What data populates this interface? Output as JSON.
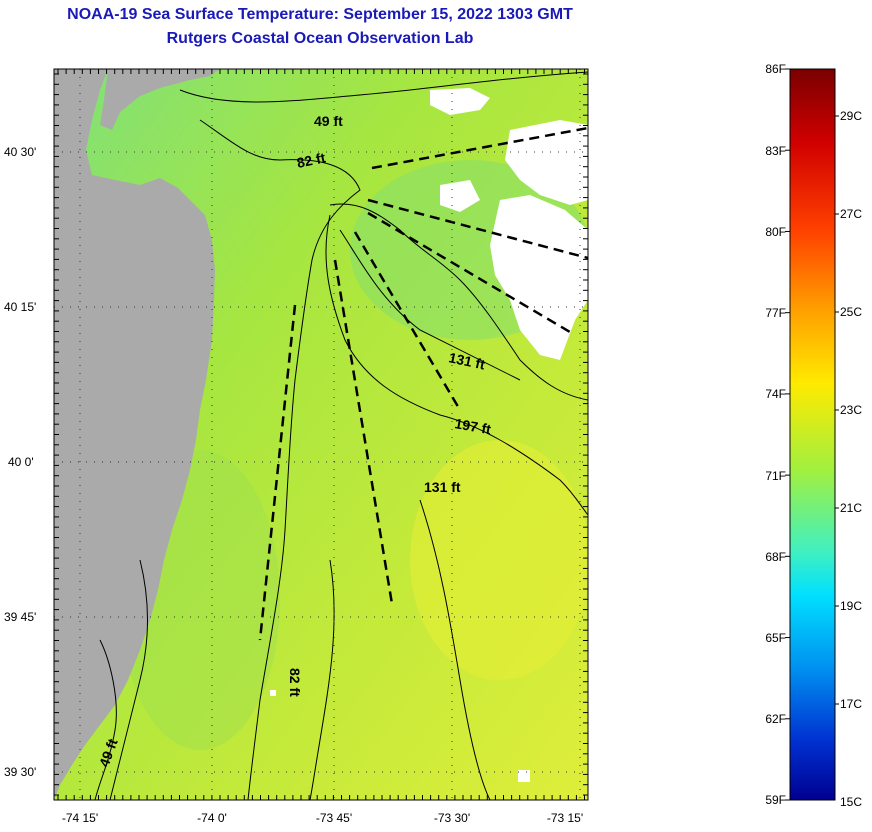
{
  "title": "NOAA-19 Sea Surface Temperature:  September 15, 2022 1303 GMT",
  "subtitle": "Rutgers Coastal Ocean Observation Lab",
  "lat_labels": [
    "40 30'",
    "40 15'",
    "40 0'",
    "39 45'",
    "39 30'"
  ],
  "lon_labels": [
    "-74 15'",
    "-74 0'",
    "-73 45'",
    "-73 30'",
    "-73 15'"
  ],
  "depth_labels": [
    "49 ft",
    "82 ft",
    "131 ft",
    "197 ft",
    "131 ft",
    "82 ft",
    "49 ft"
  ],
  "colorbar": {
    "fahrenheit": [
      "86F",
      "83F",
      "80F",
      "77F",
      "74F",
      "71F",
      "68F",
      "65F",
      "62F",
      "59F"
    ],
    "celsius": [
      "29C",
      "27C",
      "25C",
      "23C",
      "21C",
      "19C",
      "17C",
      "15C"
    ]
  },
  "colors": {
    "land": "#aaaaaa",
    "cloud": "#ffffff",
    "title": "#1a1ab8"
  }
}
